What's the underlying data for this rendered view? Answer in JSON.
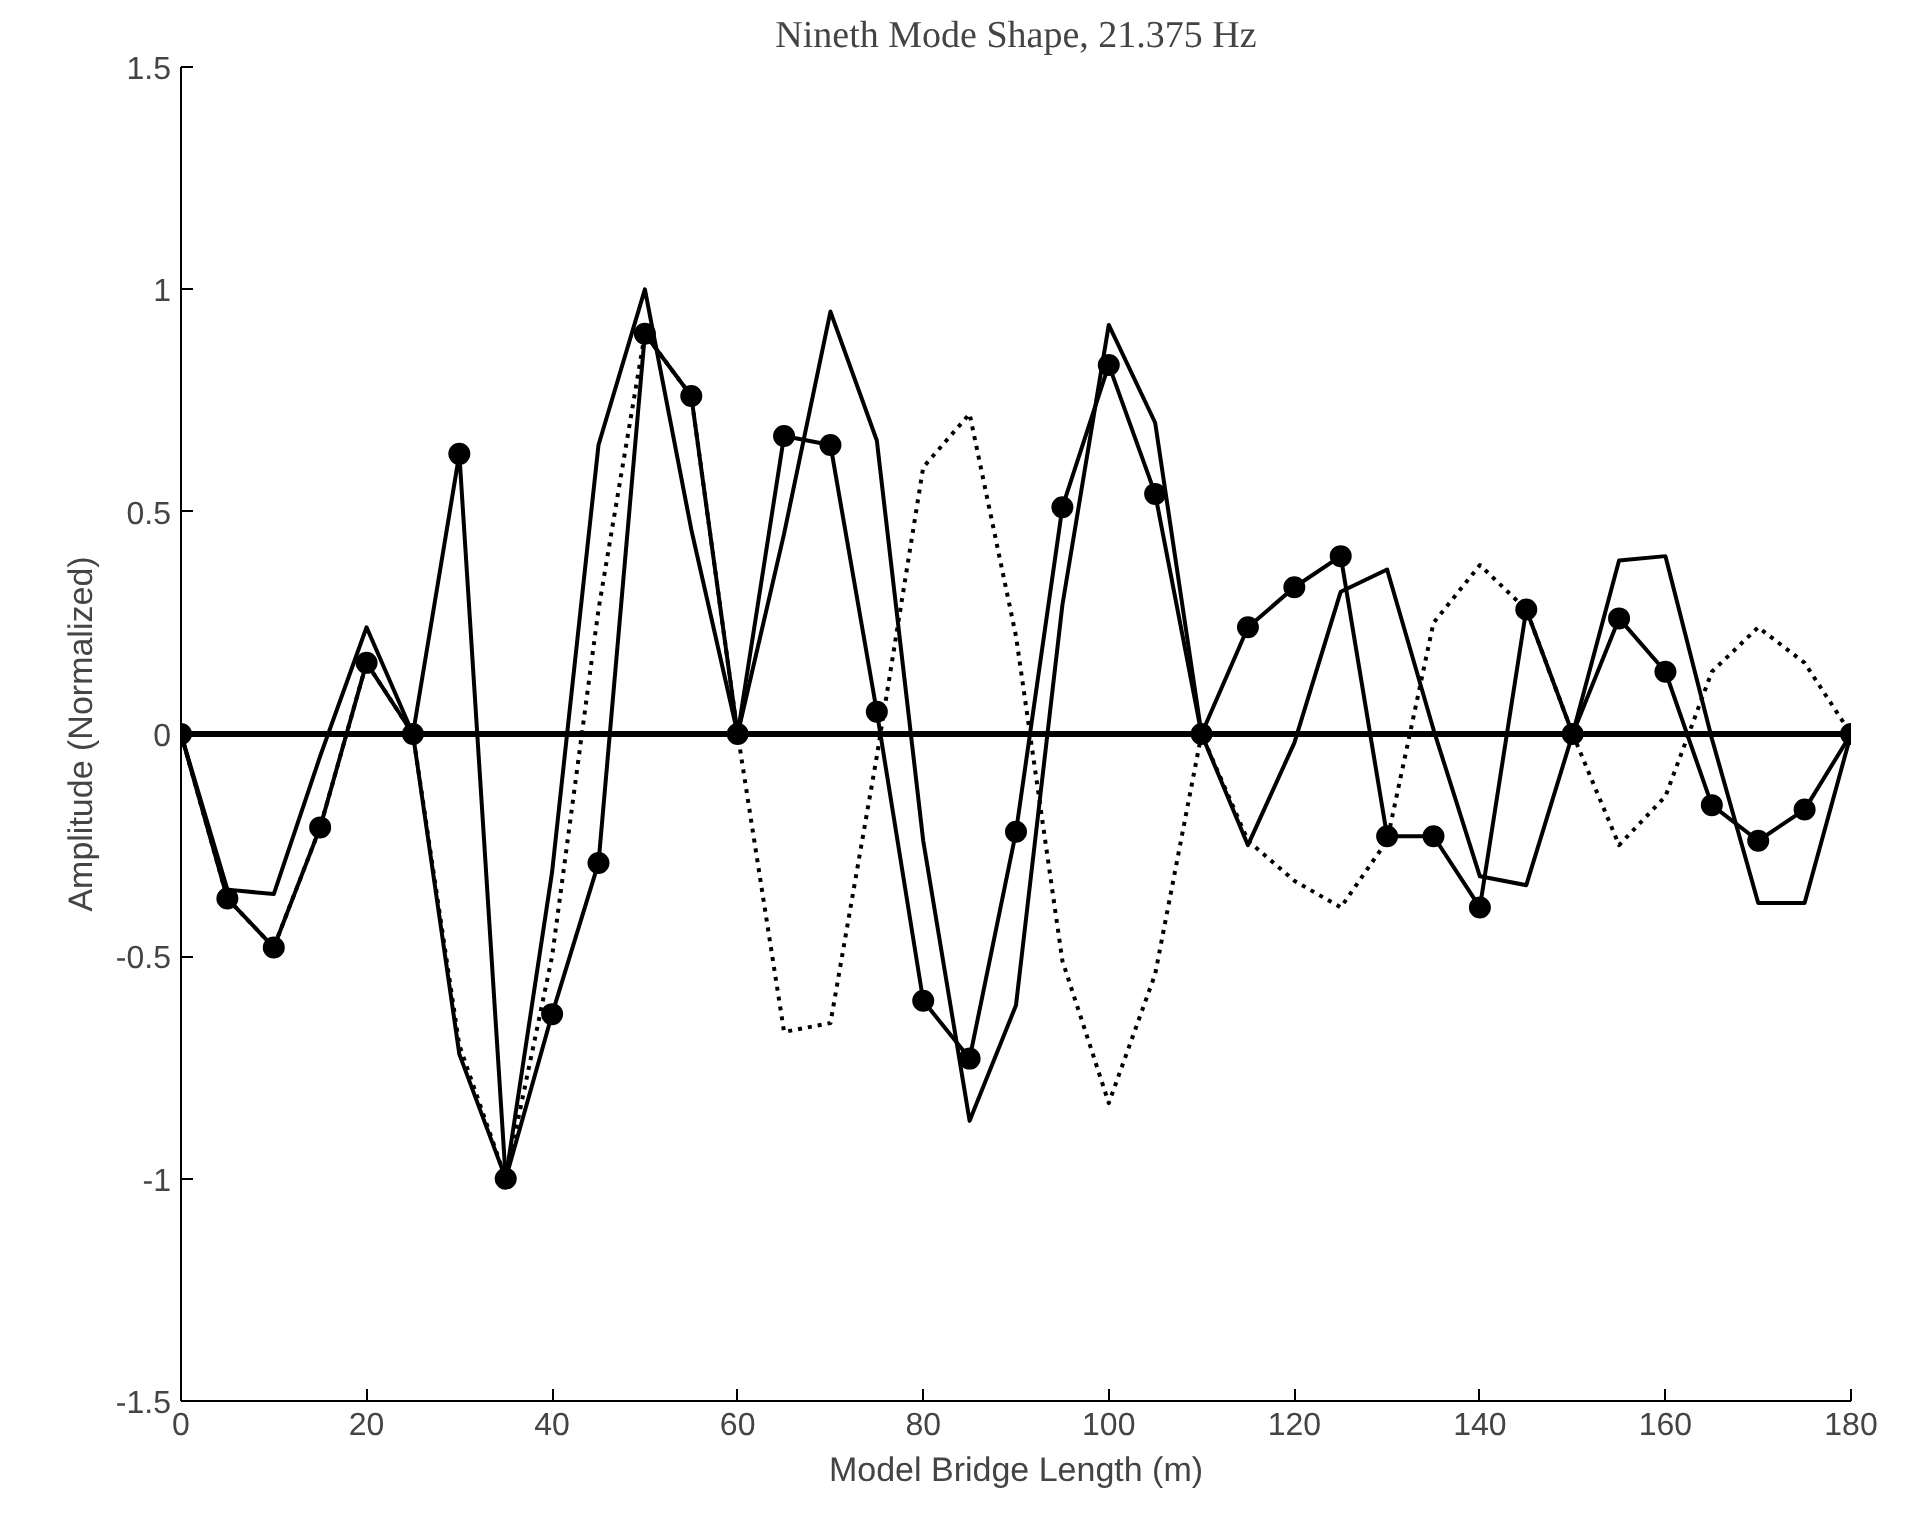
{
  "chart_data": {
    "type": "line",
    "title": "Nineth Mode Shape, 21.375 Hz",
    "xlabel": "Model Bridge Length (m)",
    "ylabel": "Amplitude (Normalized)",
    "x": [
      0,
      5,
      10,
      15,
      20,
      25,
      30,
      35,
      40,
      45,
      50,
      55,
      60,
      65,
      70,
      75,
      80,
      85,
      90,
      95,
      100,
      105,
      110,
      115,
      120,
      125,
      130,
      135,
      140,
      145,
      150,
      155,
      160,
      165,
      170,
      175,
      180
    ],
    "series": [
      {
        "color": "#000000",
        "marker": "circle",
        "line_style": "solid",
        "values": [
          0,
          -0.37,
          -0.48,
          -0.21,
          0.16,
          0,
          0.63,
          -1.0,
          -0.63,
          -0.29,
          0.9,
          0.76,
          0,
          0.67,
          0.65,
          0.05,
          -0.6,
          -0.73,
          -0.22,
          0.51,
          0.83,
          0.54,
          0,
          0.24,
          0.33,
          0.4,
          -0.23,
          -0.23,
          -0.39,
          0.28,
          0,
          0.26,
          0.14,
          -0.16,
          -0.24,
          -0.17,
          0
        ]
      },
      {
        "color": "#000000",
        "marker": "none",
        "line_style": "solid",
        "values": [
          0,
          -0.35,
          -0.36,
          -0.05,
          0.24,
          0,
          -0.72,
          -1.0,
          -0.31,
          0.65,
          1.0,
          0.46,
          0,
          0.45,
          0.95,
          0.66,
          -0.24,
          -0.87,
          -0.61,
          0.29,
          0.92,
          0.7,
          0,
          -0.25,
          -0.02,
          0.32,
          0.37,
          0.01,
          -0.32,
          -0.34,
          0,
          0.39,
          0.4,
          -0.01,
          -0.38,
          -0.38,
          0
        ]
      },
      {
        "color": "#000000",
        "marker": "none",
        "line_style": "dotted",
        "values": [
          0,
          -0.37,
          -0.48,
          -0.21,
          0.16,
          0,
          -0.7,
          -1.0,
          -0.5,
          0.28,
          0.9,
          0.76,
          0,
          -0.67,
          -0.65,
          -0.05,
          0.6,
          0.72,
          0.22,
          -0.51,
          -0.83,
          -0.54,
          0,
          -0.24,
          -0.33,
          -0.39,
          -0.24,
          0.25,
          0.38,
          0.28,
          0,
          -0.25,
          -0.14,
          0.14,
          0.24,
          0.16,
          0
        ]
      }
    ],
    "ref_lines": [
      {
        "axis": "y",
        "value": 0,
        "color": "#000000"
      }
    ],
    "xlim": [
      0,
      180
    ],
    "ylim": [
      -1.5,
      1.5
    ],
    "xticks": [
      0,
      20,
      40,
      60,
      80,
      100,
      120,
      140,
      160,
      180
    ],
    "yticks": [
      -1.5,
      -1,
      -0.5,
      0,
      0.5,
      1,
      1.5
    ],
    "grid": false
  }
}
